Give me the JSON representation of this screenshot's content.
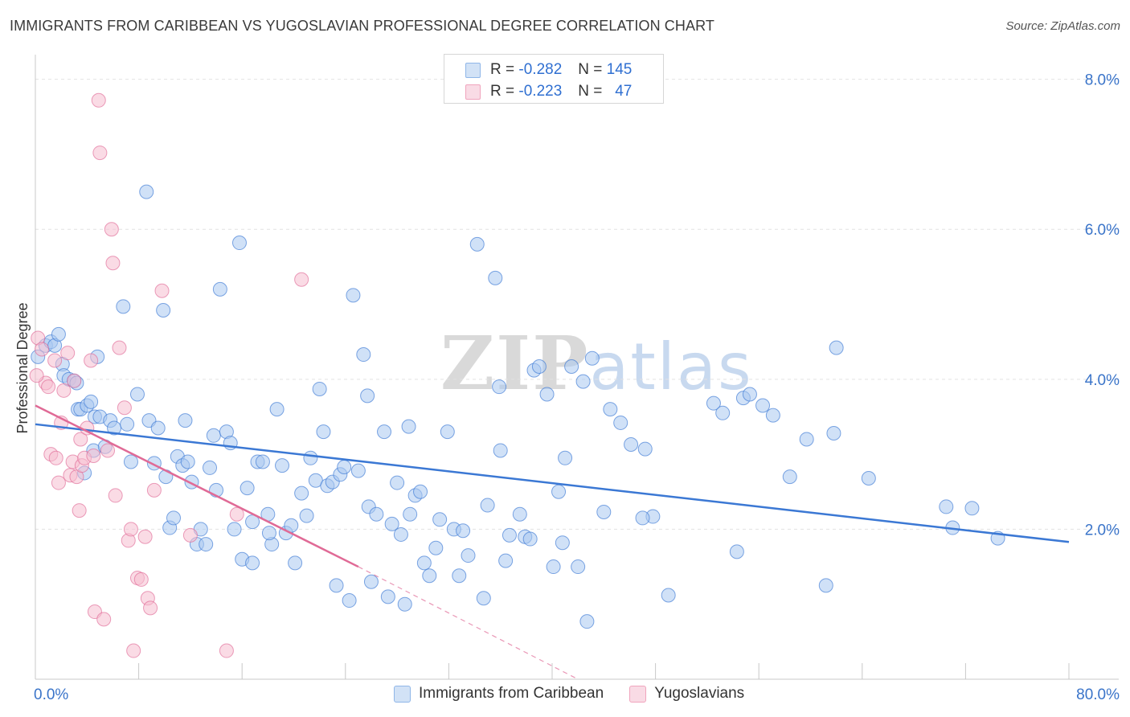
{
  "header": {
    "title": "IMMIGRANTS FROM CARIBBEAN VS YUGOSLAVIAN PROFESSIONAL DEGREE CORRELATION CHART",
    "source": "Source: ZipAtlas.com"
  },
  "watermark": {
    "zip": "ZIP",
    "atlas": "atlas"
  },
  "legend_top": {
    "rows": [
      {
        "r_label": "R =",
        "r_value": "-0.282",
        "n_label": "N =",
        "n_value": "145",
        "color": "#8fb6e8"
      },
      {
        "r_label": "R =",
        "r_value": "-0.223",
        "n_label": "N =",
        "n_value": "47",
        "color": "#f0a4bd"
      }
    ]
  },
  "legend_bottom": {
    "items": [
      {
        "label": "Immigrants from Caribbean",
        "color": "#8fb6e8"
      },
      {
        "label": "Yugoslavians",
        "color": "#f0a4bd"
      }
    ]
  },
  "chart_data": {
    "type": "scatter",
    "title": "IMMIGRANTS FROM CARIBBEAN VS YUGOSLAVIAN PROFESSIONAL DEGREE CORRELATION CHART",
    "xlabel": "",
    "ylabel": "Professional Degree",
    "xlim": [
      0,
      80
    ],
    "ylim": [
      0,
      8.2
    ],
    "x_tick_labels": [
      "0.0%",
      "80.0%"
    ],
    "y_ticks": [
      2,
      4,
      6,
      8
    ],
    "y_tick_labels": [
      "2.0%",
      "4.0%",
      "6.0%",
      "8.0%"
    ],
    "grid": true,
    "legend_position": "top-center",
    "series": [
      {
        "name": "Immigrants from Caribbean",
        "color": "#3b78d4",
        "fill": "#a9c8f0",
        "trend": {
          "x0": 0,
          "y0": 3.4,
          "x1": 80,
          "y1": 1.83
        },
        "points": [
          [
            0.2,
            4.3
          ],
          [
            0.8,
            4.45
          ],
          [
            1.2,
            4.5
          ],
          [
            1.5,
            4.45
          ],
          [
            1.8,
            4.6
          ],
          [
            2.1,
            4.2
          ],
          [
            2.2,
            4.05
          ],
          [
            2.6,
            4.0
          ],
          [
            3.0,
            3.98
          ],
          [
            3.2,
            3.95
          ],
          [
            3.3,
            3.6
          ],
          [
            3.5,
            3.6
          ],
          [
            3.8,
            2.75
          ],
          [
            4.0,
            3.65
          ],
          [
            4.3,
            3.7
          ],
          [
            4.5,
            3.05
          ],
          [
            4.6,
            3.5
          ],
          [
            4.8,
            4.3
          ],
          [
            5.0,
            3.5
          ],
          [
            5.4,
            3.1
          ],
          [
            5.8,
            3.45
          ],
          [
            6.1,
            3.35
          ],
          [
            6.8,
            4.97
          ],
          [
            7.1,
            3.4
          ],
          [
            7.4,
            2.9
          ],
          [
            7.9,
            3.8
          ],
          [
            8.6,
            6.5
          ],
          [
            8.8,
            3.45
          ],
          [
            9.2,
            2.88
          ],
          [
            9.5,
            3.35
          ],
          [
            9.9,
            4.92
          ],
          [
            10.1,
            2.7
          ],
          [
            10.4,
            2.02
          ],
          [
            10.7,
            2.15
          ],
          [
            11.0,
            2.97
          ],
          [
            11.4,
            2.85
          ],
          [
            11.6,
            3.45
          ],
          [
            11.8,
            2.9
          ],
          [
            12.1,
            2.63
          ],
          [
            12.5,
            1.8
          ],
          [
            12.8,
            2.0
          ],
          [
            13.2,
            1.8
          ],
          [
            13.5,
            2.82
          ],
          [
            13.8,
            3.25
          ],
          [
            14.0,
            2.52
          ],
          [
            14.3,
            5.2
          ],
          [
            14.8,
            3.3
          ],
          [
            15.1,
            3.15
          ],
          [
            15.4,
            2.0
          ],
          [
            15.8,
            5.82
          ],
          [
            16.0,
            1.6
          ],
          [
            16.4,
            2.55
          ],
          [
            16.8,
            1.55
          ],
          [
            17.2,
            2.9
          ],
          [
            17.6,
            2.9
          ],
          [
            18.0,
            2.2
          ],
          [
            18.3,
            1.8
          ],
          [
            18.7,
            3.6
          ],
          [
            19.1,
            2.85
          ],
          [
            19.4,
            1.95
          ],
          [
            19.8,
            2.05
          ],
          [
            20.1,
            1.55
          ],
          [
            20.6,
            2.48
          ],
          [
            21.0,
            2.18
          ],
          [
            21.3,
            2.95
          ],
          [
            21.7,
            2.65
          ],
          [
            22.0,
            3.87
          ],
          [
            22.3,
            3.3
          ],
          [
            22.6,
            2.58
          ],
          [
            23.0,
            2.63
          ],
          [
            23.3,
            1.25
          ],
          [
            23.6,
            2.73
          ],
          [
            23.9,
            2.83
          ],
          [
            24.3,
            1.05
          ],
          [
            24.6,
            5.12
          ],
          [
            25.0,
            2.78
          ],
          [
            25.4,
            4.33
          ],
          [
            25.7,
            3.78
          ],
          [
            25.8,
            2.3
          ],
          [
            26.4,
            2.2
          ],
          [
            27.0,
            3.3
          ],
          [
            27.3,
            1.1
          ],
          [
            27.6,
            2.07
          ],
          [
            28.0,
            2.62
          ],
          [
            28.3,
            1.93
          ],
          [
            28.6,
            1.0
          ],
          [
            28.9,
            3.37
          ],
          [
            29.0,
            2.2
          ],
          [
            29.4,
            2.45
          ],
          [
            29.8,
            2.5
          ],
          [
            30.1,
            1.55
          ],
          [
            30.5,
            1.38
          ],
          [
            31.0,
            1.75
          ],
          [
            31.3,
            2.13
          ],
          [
            31.9,
            3.3
          ],
          [
            32.4,
            2.0
          ],
          [
            32.8,
            1.38
          ],
          [
            33.1,
            1.98
          ],
          [
            33.5,
            1.65
          ],
          [
            34.2,
            5.8
          ],
          [
            34.7,
            1.08
          ],
          [
            35.0,
            2.32
          ],
          [
            35.6,
            5.35
          ],
          [
            35.9,
            3.9
          ],
          [
            36.4,
            1.58
          ],
          [
            36.7,
            1.92
          ],
          [
            37.5,
            2.2
          ],
          [
            37.9,
            1.9
          ],
          [
            38.3,
            1.87
          ],
          [
            38.6,
            4.12
          ],
          [
            39.0,
            4.17
          ],
          [
            39.6,
            3.8
          ],
          [
            40.1,
            1.5
          ],
          [
            40.5,
            2.5
          ],
          [
            40.8,
            1.82
          ],
          [
            41.5,
            4.17
          ],
          [
            42.0,
            1.5
          ],
          [
            42.4,
            3.97
          ],
          [
            42.7,
            0.77
          ],
          [
            43.1,
            4.28
          ],
          [
            44.0,
            2.23
          ],
          [
            44.5,
            3.6
          ],
          [
            45.3,
            3.42
          ],
          [
            46.1,
            3.13
          ],
          [
            47.2,
            3.07
          ],
          [
            47.8,
            2.17
          ],
          [
            49.0,
            1.12
          ],
          [
            52.5,
            3.68
          ],
          [
            53.2,
            3.55
          ],
          [
            54.3,
            1.7
          ],
          [
            54.8,
            3.75
          ],
          [
            55.3,
            3.8
          ],
          [
            56.3,
            3.65
          ],
          [
            57.1,
            3.52
          ],
          [
            58.4,
            2.7
          ],
          [
            59.7,
            3.2
          ],
          [
            61.8,
            3.28
          ],
          [
            62.0,
            4.42
          ],
          [
            61.2,
            1.25
          ],
          [
            64.5,
            2.68
          ],
          [
            70.5,
            2.3
          ],
          [
            71.0,
            2.02
          ],
          [
            72.5,
            2.28
          ],
          [
            74.5,
            1.88
          ],
          [
            47.0,
            2.15
          ],
          [
            18.1,
            1.95
          ],
          [
            36.0,
            3.05
          ],
          [
            26.0,
            1.3
          ],
          [
            41.0,
            2.95
          ],
          [
            16.8,
            2.1
          ]
        ]
      },
      {
        "name": "Yugoslavians",
        "color": "#e06a96",
        "fill": "#f6bdd0",
        "trend": {
          "x0": 0,
          "y0": 3.65,
          "x1": 25,
          "y1": 1.5
        },
        "trend_dashed": {
          "x0": 25,
          "y0": 1.5,
          "x1": 42,
          "y1": 0.0
        },
        "points": [
          [
            0.2,
            4.55
          ],
          [
            0.5,
            4.4
          ],
          [
            0.8,
            3.95
          ],
          [
            1.0,
            3.9
          ],
          [
            1.2,
            3.0
          ],
          [
            1.5,
            4.25
          ],
          [
            1.6,
            2.95
          ],
          [
            1.8,
            2.62
          ],
          [
            2.0,
            3.42
          ],
          [
            2.2,
            3.85
          ],
          [
            2.5,
            4.35
          ],
          [
            2.7,
            2.72
          ],
          [
            2.9,
            2.9
          ],
          [
            3.0,
            3.98
          ],
          [
            3.2,
            2.7
          ],
          [
            3.4,
            2.25
          ],
          [
            3.5,
            3.2
          ],
          [
            3.6,
            2.85
          ],
          [
            3.8,
            2.95
          ],
          [
            4.0,
            3.35
          ],
          [
            4.3,
            4.25
          ],
          [
            4.5,
            2.98
          ],
          [
            4.6,
            0.9
          ],
          [
            4.9,
            7.72
          ],
          [
            5.0,
            7.02
          ],
          [
            5.3,
            0.8
          ],
          [
            5.6,
            3.05
          ],
          [
            5.9,
            6.0
          ],
          [
            6.0,
            5.55
          ],
          [
            6.2,
            2.45
          ],
          [
            6.5,
            4.42
          ],
          [
            6.9,
            3.62
          ],
          [
            7.2,
            1.85
          ],
          [
            7.4,
            2.0
          ],
          [
            7.6,
            0.38
          ],
          [
            7.9,
            1.35
          ],
          [
            8.2,
            1.33
          ],
          [
            8.5,
            1.9
          ],
          [
            8.7,
            1.08
          ],
          [
            8.9,
            0.95
          ],
          [
            9.2,
            2.52
          ],
          [
            9.8,
            5.18
          ],
          [
            12.0,
            1.92
          ],
          [
            14.8,
            0.38
          ],
          [
            15.6,
            2.2
          ],
          [
            20.6,
            5.33
          ],
          [
            0.1,
            4.05
          ]
        ]
      }
    ]
  }
}
